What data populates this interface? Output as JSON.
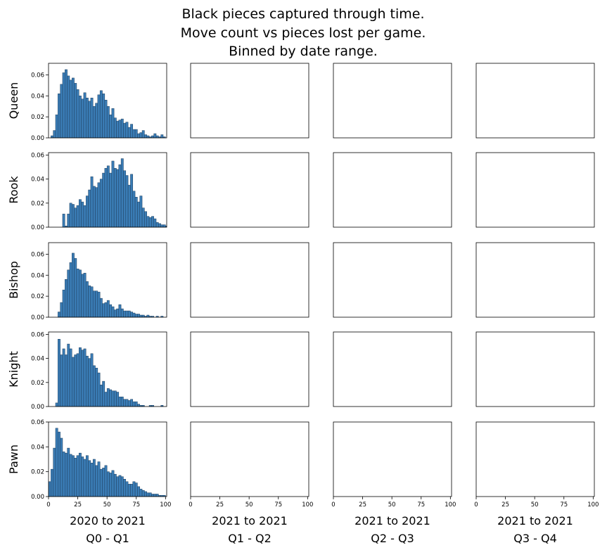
{
  "chart_data": {
    "type": "bar",
    "title_lines": [
      "Black  pieces  captured through time.",
      "Move count vs pieces lost per game.",
      "Binned by date range."
    ],
    "rows": [
      "Queen",
      "Rook",
      "Bishop",
      "Knight",
      "Pawn"
    ],
    "columns": [
      {
        "line1": "2020 to 2021",
        "line2": "Q0 - Q1"
      },
      {
        "line1": "2021 to 2021",
        "line2": "Q1 - Q2"
      },
      {
        "line1": "2021 to 2021",
        "line2": "Q2 - Q3"
      },
      {
        "line1": "2021 to 2021",
        "line2": "Q3 - Q4"
      }
    ],
    "xlim": [
      0,
      101
    ],
    "xticks": [
      0,
      25,
      50,
      75,
      100
    ],
    "bin_start": 0,
    "bin_width": 2,
    "bar_color": "#3a7cb5",
    "bar_edge": "#1f3f5e",
    "panels": [
      {
        "row": "Queen",
        "column": 0,
        "ylim": [
          0,
          0.071
        ],
        "yticks": [
          0,
          0.02,
          0.04,
          0.06
        ],
        "values": [
          0,
          0.002,
          0.007,
          0.022,
          0.042,
          0.051,
          0.062,
          0.065,
          0.059,
          0.055,
          0.057,
          0.052,
          0.046,
          0.04,
          0.037,
          0.043,
          0.038,
          0.035,
          0.038,
          0.03,
          0.033,
          0.041,
          0.045,
          0.042,
          0.036,
          0.03,
          0.022,
          0.028,
          0.019,
          0.016,
          0.017,
          0.018,
          0.014,
          0.015,
          0.01,
          0.013,
          0.008,
          0.008,
          0.004,
          0.005,
          0.007,
          0.003,
          0.002,
          0.001,
          0.002,
          0.004,
          0.002,
          0.001,
          0.003,
          0.001,
          0.0
        ]
      },
      {
        "row": "Rook",
        "column": 0,
        "ylim": [
          0,
          0.062
        ],
        "yticks": [
          0,
          0.02,
          0.04,
          0.06
        ],
        "values": [
          0,
          0,
          0,
          0,
          0,
          0,
          0.011,
          0.001,
          0.011,
          0.02,
          0.019,
          0.016,
          0.018,
          0.023,
          0.021,
          0.018,
          0.026,
          0.031,
          0.042,
          0.034,
          0.033,
          0.037,
          0.04,
          0.045,
          0.049,
          0.051,
          0.045,
          0.055,
          0.049,
          0.048,
          0.052,
          0.057,
          0.047,
          0.043,
          0.035,
          0.044,
          0.03,
          0.025,
          0.021,
          0.026,
          0.016,
          0.013,
          0.009,
          0.008,
          0.009,
          0.007,
          0.004,
          0.003,
          0.002,
          0.002,
          0.001
        ]
      },
      {
        "row": "Bishop",
        "column": 0,
        "ylim": [
          0,
          0.071
        ],
        "yticks": [
          0,
          0.02,
          0.04,
          0.06
        ],
        "values": [
          0,
          0,
          0,
          0,
          0.005,
          0.014,
          0.026,
          0.036,
          0.045,
          0.052,
          0.061,
          0.056,
          0.046,
          0.045,
          0.041,
          0.042,
          0.034,
          0.03,
          0.029,
          0.025,
          0.025,
          0.024,
          0.018,
          0.013,
          0.014,
          0.016,
          0.012,
          0.01,
          0.007,
          0.008,
          0.012,
          0.008,
          0.006,
          0.006,
          0.006,
          0.005,
          0.004,
          0.003,
          0.003,
          0.002,
          0.002,
          0.001,
          0.002,
          0.001,
          0.001,
          0.0,
          0.001,
          0.0,
          0.001,
          0.0,
          0.0
        ]
      },
      {
        "row": "Knight",
        "column": 0,
        "ylim": [
          0,
          0.062
        ],
        "yticks": [
          0,
          0.02,
          0.04,
          0.06
        ],
        "values": [
          0,
          0,
          0,
          0.003,
          0.056,
          0.043,
          0.048,
          0.043,
          0.052,
          0.048,
          0.041,
          0.043,
          0.044,
          0.049,
          0.047,
          0.048,
          0.042,
          0.04,
          0.044,
          0.034,
          0.032,
          0.028,
          0.018,
          0.021,
          0.012,
          0.015,
          0.014,
          0.013,
          0.013,
          0.012,
          0.008,
          0.008,
          0.006,
          0.006,
          0.005,
          0.006,
          0.004,
          0.004,
          0.002,
          0.001,
          0.001,
          0.0,
          0.0,
          0.001,
          0.001,
          0.0,
          0.0,
          0.0,
          0.001,
          0.0,
          0.0
        ]
      },
      {
        "row": "Pawn",
        "column": 0,
        "ylim": [
          0,
          0.06
        ],
        "yticks": [
          0,
          0.02,
          0.04,
          0.06
        ],
        "values": [
          0.012,
          0.022,
          0.039,
          0.055,
          0.052,
          0.047,
          0.036,
          0.035,
          0.039,
          0.034,
          0.033,
          0.031,
          0.033,
          0.035,
          0.032,
          0.03,
          0.033,
          0.029,
          0.027,
          0.03,
          0.025,
          0.028,
          0.022,
          0.023,
          0.025,
          0.02,
          0.019,
          0.021,
          0.018,
          0.016,
          0.017,
          0.016,
          0.014,
          0.012,
          0.01,
          0.01,
          0.012,
          0.011,
          0.008,
          0.006,
          0.005,
          0.004,
          0.003,
          0.003,
          0.002,
          0.002,
          0.002,
          0.001,
          0.001,
          0.001,
          0.0
        ]
      }
    ]
  }
}
